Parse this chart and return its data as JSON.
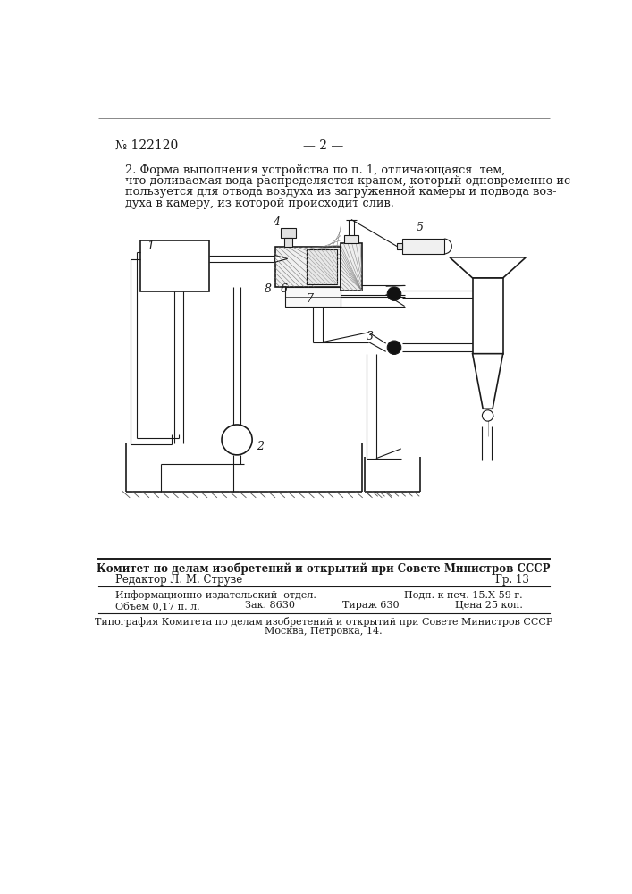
{
  "bg_color": "#ffffff",
  "text_color": "#1a1a1a",
  "header_line_text": "№ 122120",
  "header_page": "— 2 —",
  "para1": "2. Форма выполнения устройства по п. 1, отличающаяся  тем,",
  "para2": "что доливаемая вода распределяется краном, который одновременно ис-",
  "para3": "пользуется для отвода воздуха из загруженной камеры и подвода воз-",
  "para4": "духа в камеру, из которой происходит слив.",
  "footer_committee": "Комитет по делам изобретений и открытий при Совете Министров СССР",
  "footer_editor": "Редактор Л. М. Струве",
  "footer_gr": "Гр. 13",
  "footer_info1": "Информационно-издательский  отдел.",
  "footer_podp": "Подп. к печ. 15.Х-59 г.",
  "footer_objem": "Объем 0,17 п. л.",
  "footer_zak": "Зак. 8630",
  "footer_tiraj": "Тираж 630",
  "footer_cena": "Цена 25 коп.",
  "footer_tipograf": "Типография Комитета по делам изобретений и открытий при Совете Министров СССР",
  "footer_moskva": "Москва, Петровка, 14."
}
